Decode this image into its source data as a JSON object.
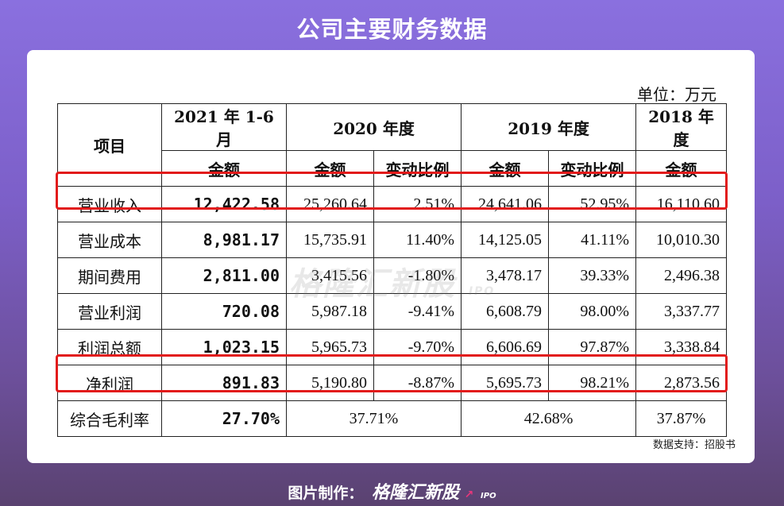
{
  "title": "公司主要财务数据",
  "unit": "单位：万元",
  "header": {
    "item": "项目",
    "p2021": "2021 年 1-6 月",
    "p2020": "2020 年度",
    "p2019": "2019 年度",
    "p2018": "2018 年度",
    "amount": "金额",
    "change": "变动比例"
  },
  "rows": [
    {
      "item": "营业收入",
      "v2021": "12,422.58",
      "v2020": "25,260.64",
      "c2020": "2.51%",
      "v2019": "24,641.06",
      "c2019": "52.95%",
      "v2018": "16,110.60"
    },
    {
      "item": "营业成本",
      "v2021": "8,981.17",
      "v2020": "15,735.91",
      "c2020": "11.40%",
      "v2019": "14,125.05",
      "c2019": "41.11%",
      "v2018": "10,010.30"
    },
    {
      "item": "期间费用",
      "v2021": "2,811.00",
      "v2020": "3,415.56",
      "c2020": "-1.80%",
      "v2019": "3,478.17",
      "c2019": "39.33%",
      "v2018": "2,496.38"
    },
    {
      "item": "营业利润",
      "v2021": "720.08",
      "v2020": "5,987.18",
      "c2020": "-9.41%",
      "v2019": "6,608.79",
      "c2019": "98.00%",
      "v2018": "3,337.77"
    },
    {
      "item": "利润总额",
      "v2021": "1,023.15",
      "v2020": "5,965.73",
      "c2020": "-9.70%",
      "v2019": "6,606.69",
      "c2019": "97.87%",
      "v2018": "3,338.84"
    },
    {
      "item": "净利润",
      "v2021": "891.83",
      "v2020": "5,190.80",
      "c2020": "-8.87%",
      "v2019": "5,695.73",
      "c2019": "98.21%",
      "v2018": "2,873.56"
    }
  ],
  "margin_row": {
    "item": "综合毛利率",
    "v2021": "27.70%",
    "v2020": "37.71%",
    "v2019": "42.68%",
    "v2018": "37.87%"
  },
  "watermark": {
    "text": "格隆汇新股",
    "sub": "IPO"
  },
  "source": "数据支持：招股书",
  "footer": {
    "label": "图片制作：",
    "brand": "格隆汇新股",
    "sub": "IPO"
  },
  "colors": {
    "highlight": "#e21b1b",
    "background": "#7c5fc8"
  }
}
